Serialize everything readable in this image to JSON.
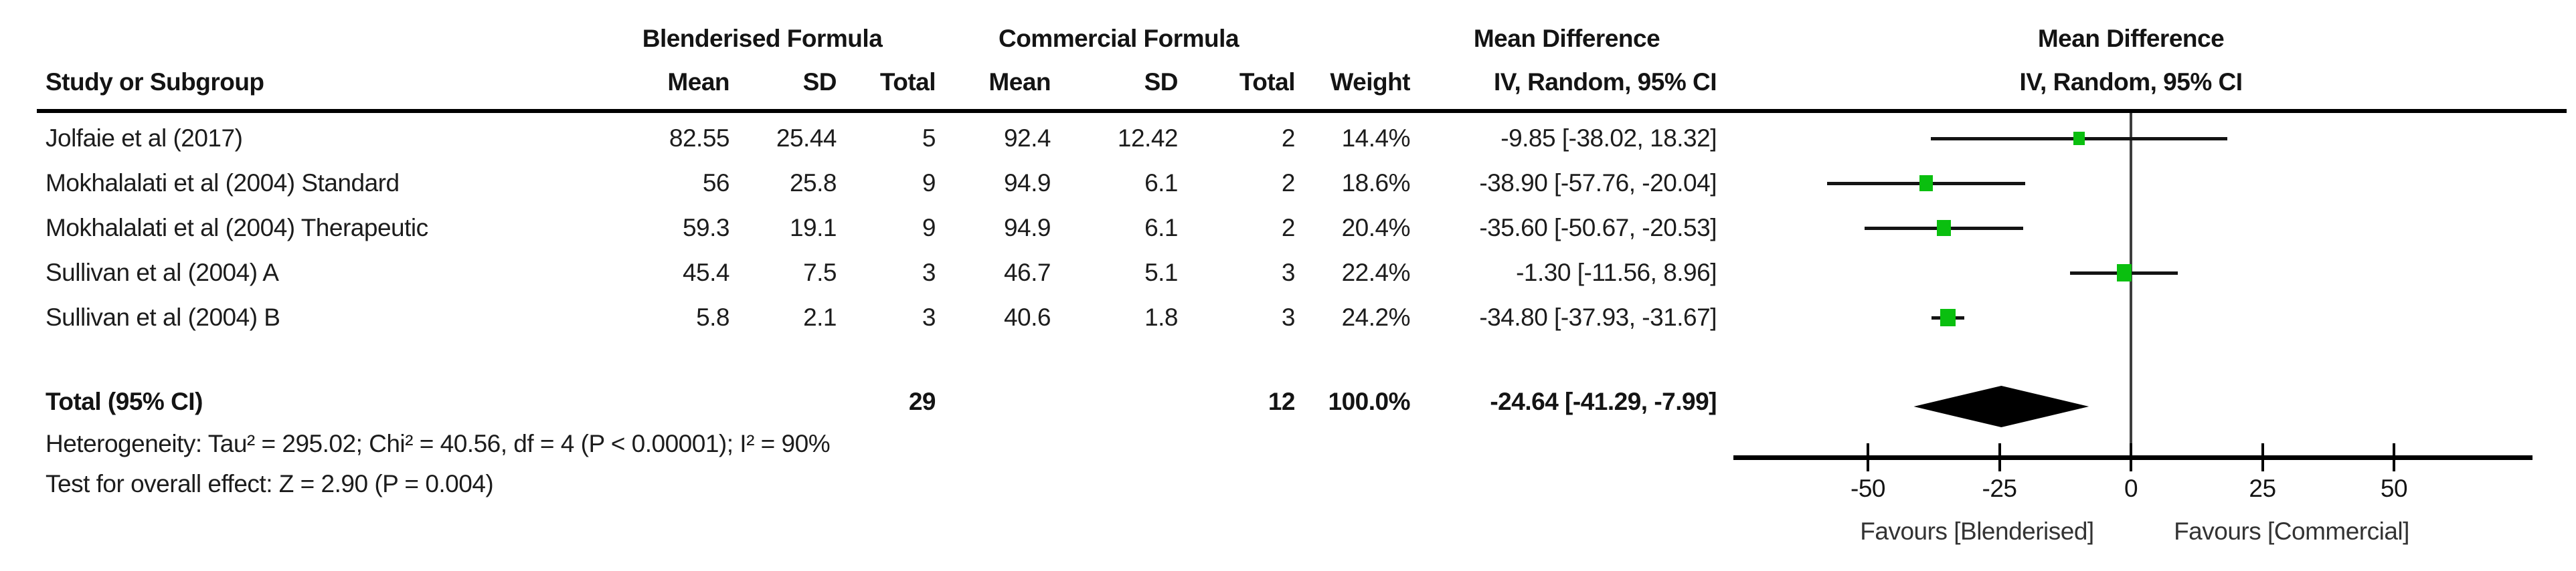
{
  "table": {
    "group_headers": {
      "experimental": "Blenderised Formula",
      "control": "Commercial Formula",
      "md_text": "Mean Difference",
      "md_plot": "Mean Difference"
    },
    "col_headers": {
      "study": "Study or Subgroup",
      "mean1": "Mean",
      "sd1": "SD",
      "total1": "Total",
      "mean2": "Mean",
      "sd2": "SD",
      "total2": "Total",
      "weight": "Weight",
      "ci": "IV, Random, 95% CI",
      "ci_plot": "IV, Random, 95% CI"
    },
    "rows": [
      {
        "study": "Jolfaie et al (2017)",
        "b_mean": "82.55",
        "b_sd": "25.44",
        "b_total": "5",
        "c_mean": "92.4",
        "c_sd": "12.42",
        "c_total": "2",
        "weight": "14.4%",
        "ci_text": "-9.85 [-38.02, 18.32]"
      },
      {
        "study": "Mokhalalati et al (2004) Standard",
        "b_mean": "56",
        "b_sd": "25.8",
        "b_total": "9",
        "c_mean": "94.9",
        "c_sd": "6.1",
        "c_total": "2",
        "weight": "18.6%",
        "ci_text": "-38.90 [-57.76, -20.04]"
      },
      {
        "study": "Mokhalalati et al (2004) Therapeutic",
        "b_mean": "59.3",
        "b_sd": "19.1",
        "b_total": "9",
        "c_mean": "94.9",
        "c_sd": "6.1",
        "c_total": "2",
        "weight": "20.4%",
        "ci_text": "-35.60 [-50.67, -20.53]"
      },
      {
        "study": "Sullivan et al (2004) A",
        "b_mean": "45.4",
        "b_sd": "7.5",
        "b_total": "3",
        "c_mean": "46.7",
        "c_sd": "5.1",
        "c_total": "3",
        "weight": "22.4%",
        "ci_text": "-1.30 [-11.56, 8.96]"
      },
      {
        "study": "Sullivan et al (2004) B",
        "b_mean": "5.8",
        "b_sd": "2.1",
        "b_total": "3",
        "c_mean": "40.6",
        "c_sd": "1.8",
        "c_total": "3",
        "weight": "24.2%",
        "ci_text": "-34.80 [-37.93, -31.67]"
      }
    ],
    "total_row": {
      "label": "Total (95% CI)",
      "b_total": "29",
      "c_total": "12",
      "weight": "100.0%",
      "ci_text": "-24.64 [-41.29, -7.99]"
    },
    "footnotes": {
      "heterogeneity": "Heterogeneity: Tau² = 295.02; Chi² = 40.56, df = 4 (P < 0.00001); I² = 90%",
      "overall_effect": "Test for overall effect: Z = 2.90 (P = 0.004)"
    }
  },
  "plot": {
    "tick_labels": [
      "-50",
      "-25",
      "0",
      "25",
      "50"
    ],
    "favours_left": "Favours [Blenderised]",
    "favours_right": "Favours [Commercial]"
  },
  "colors": {
    "marker_green": "#0abf0f",
    "diamond_black": "#000000",
    "zero_line_gray": "#3d3d3d"
  },
  "chart_data": {
    "type": "scatter",
    "subtype": "forest_plot",
    "title": "Mean Difference — IV, Random, 95% CI",
    "effect_measure": "Mean Difference",
    "model": "IV, Random, 95% CI",
    "xlim": [
      -76,
      76
    ],
    "xticks": [
      -50,
      -25,
      0,
      25,
      50
    ],
    "xlabel_left": "Favours [Blenderised]",
    "xlabel_right": "Favours [Commercial]",
    "grid": false,
    "studies": [
      {
        "name": "Jolfaie et al (2017)",
        "md": -9.85,
        "ci_low": -38.02,
        "ci_high": 18.32,
        "weight_pct": 14.4,
        "n_exp": 5,
        "n_ctrl": 2
      },
      {
        "name": "Mokhalalati et al (2004) Standard",
        "md": -38.9,
        "ci_low": -57.76,
        "ci_high": -20.04,
        "weight_pct": 18.6,
        "n_exp": 9,
        "n_ctrl": 2
      },
      {
        "name": "Mokhalalati et al (2004) Therapeutic",
        "md": -35.6,
        "ci_low": -50.67,
        "ci_high": -20.53,
        "weight_pct": 20.4,
        "n_exp": 9,
        "n_ctrl": 2
      },
      {
        "name": "Sullivan et al (2004) A",
        "md": -1.3,
        "ci_low": -11.56,
        "ci_high": 8.96,
        "weight_pct": 22.4,
        "n_exp": 3,
        "n_ctrl": 3
      },
      {
        "name": "Sullivan et al (2004) B",
        "md": -34.8,
        "ci_low": -37.93,
        "ci_high": -31.67,
        "weight_pct": 24.2,
        "n_exp": 3,
        "n_ctrl": 3
      }
    ],
    "total": {
      "name": "Total (95% CI)",
      "md": -24.64,
      "ci_low": -41.29,
      "ci_high": -7.99,
      "weight_pct": 100.0,
      "n_exp": 29,
      "n_ctrl": 12
    },
    "heterogeneity": {
      "tau2": 295.02,
      "chi2": 40.56,
      "df": 4,
      "p_text": "P < 0.00001",
      "i2_pct": 90
    },
    "overall_effect": {
      "z": 2.9,
      "p": 0.004
    }
  }
}
